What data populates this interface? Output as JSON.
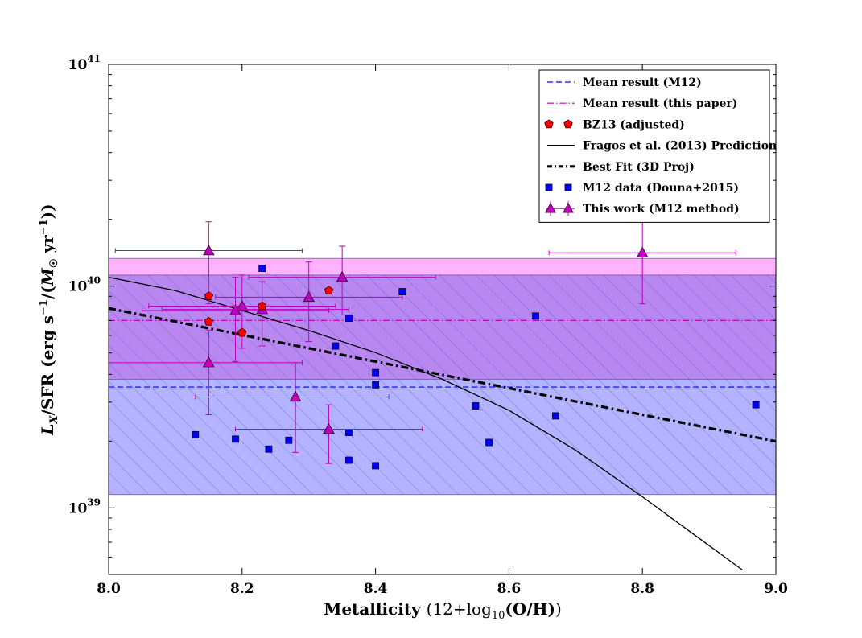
{
  "chart_data": {
    "type": "scatter",
    "title": "",
    "xlabel": "Metallicity (12+log10(O/H))",
    "ylabel": "L_X/SFR (erg s^-1/(M_sun yr^-1))",
    "xlim": [
      8.0,
      9.0
    ],
    "ylim_log10": [
      38.7,
      41.0
    ],
    "x_ticks": [
      {
        "v": 8.0,
        "label": "8.0"
      },
      {
        "v": 8.2,
        "label": "8.2"
      },
      {
        "v": 8.4,
        "label": "8.4"
      },
      {
        "v": 8.6,
        "label": "8.6"
      },
      {
        "v": 8.8,
        "label": "8.8"
      },
      {
        "v": 9.0,
        "label": "9.0"
      }
    ],
    "y_ticks": [
      {
        "e": 39,
        "base": "10",
        "exp": "39"
      },
      {
        "e": 40,
        "base": "10",
        "exp": "40"
      },
      {
        "e": 41,
        "base": "10",
        "exp": "41"
      }
    ],
    "colors": {
      "m12": "#0000ff",
      "this_paper": "#bf00bf",
      "bz13": "#ff0000",
      "fragos": "#000000",
      "band_pink": "#ffb3ff",
      "band_purple": "#b266ff",
      "band_blue": "#b3b3ff",
      "hatch": "#5050c0"
    },
    "bands": [
      {
        "name": "this-paper-upper-band",
        "lo": 40.05,
        "hi": 40.125,
        "color": "#ffb3ff"
      },
      {
        "name": "overlap-band",
        "lo": 39.58,
        "hi": 40.05,
        "color": "#b888f0"
      },
      {
        "name": "m12-lower-band",
        "lo": 39.06,
        "hi": 39.58,
        "color": "#b3b3ff"
      }
    ],
    "mean_m12": 39.545,
    "mean_this_paper": 39.845,
    "fragos_curve": [
      [
        8.0,
        40.04
      ],
      [
        8.1,
        39.98
      ],
      [
        8.2,
        39.89
      ],
      [
        8.3,
        39.8
      ],
      [
        8.4,
        39.7
      ],
      [
        8.5,
        39.58
      ],
      [
        8.6,
        39.44
      ],
      [
        8.7,
        39.26
      ],
      [
        8.8,
        39.05
      ],
      [
        8.9,
        38.83
      ],
      [
        8.95,
        38.72
      ]
    ],
    "best_fit": {
      "x0": 8.0,
      "y0": 39.9,
      "x1": 9.0,
      "y1": 39.3
    },
    "m12_data": [
      [
        8.13,
        39.33
      ],
      [
        8.19,
        39.31
      ],
      [
        8.23,
        40.08
      ],
      [
        8.24,
        39.265
      ],
      [
        8.27,
        39.305
      ],
      [
        8.34,
        39.73
      ],
      [
        8.36,
        39.855
      ],
      [
        8.36,
        39.34
      ],
      [
        8.36,
        39.215
      ],
      [
        8.4,
        39.61
      ],
      [
        8.4,
        39.555
      ],
      [
        8.4,
        39.19
      ],
      [
        8.44,
        39.975
      ],
      [
        8.55,
        39.46
      ],
      [
        8.57,
        39.295
      ],
      [
        8.64,
        39.865
      ],
      [
        8.67,
        39.415
      ],
      [
        8.97,
        39.465
      ]
    ],
    "bz13_data": [
      [
        8.15,
        39.955
      ],
      [
        8.15,
        39.84
      ],
      [
        8.2,
        39.79
      ],
      [
        8.23,
        39.91
      ],
      [
        8.33,
        39.98
      ]
    ],
    "this_work": [
      {
        "x": 8.15,
        "y": 40.16,
        "xlo": 8.01,
        "xhi": 8.29,
        "ylo": 39.92,
        "yhi": 40.29
      },
      {
        "x": 8.15,
        "y": 39.655,
        "xlo": 8.0,
        "xhi": 8.29,
        "ylo": 39.42,
        "yhi": 39.8
      },
      {
        "x": 8.19,
        "y": 39.89,
        "xlo": 8.05,
        "xhi": 8.33,
        "ylo": 39.66,
        "yhi": 40.04
      },
      {
        "x": 8.2,
        "y": 39.91,
        "xlo": 8.06,
        "xhi": 8.34,
        "ylo": 39.72,
        "yhi": 40.05
      },
      {
        "x": 8.23,
        "y": 39.895,
        "xlo": 8.08,
        "xhi": 8.36,
        "ylo": 39.73,
        "yhi": 40.02
      },
      {
        "x": 8.28,
        "y": 39.5,
        "xlo": 8.13,
        "xhi": 8.42,
        "ylo": 39.25,
        "yhi": 39.655
      },
      {
        "x": 8.3,
        "y": 39.95,
        "xlo": 8.16,
        "xhi": 8.44,
        "ylo": 39.75,
        "yhi": 40.11
      },
      {
        "x": 8.33,
        "y": 39.355,
        "xlo": 8.19,
        "xhi": 8.47,
        "ylo": 39.2,
        "yhi": 39.465
      },
      {
        "x": 8.35,
        "y": 40.04,
        "xlo": 8.21,
        "xhi": 8.49,
        "ylo": 39.87,
        "yhi": 40.18
      },
      {
        "x": 8.8,
        "y": 40.15,
        "xlo": 8.66,
        "xhi": 8.94,
        "ylo": 39.92,
        "yhi": 40.38
      }
    ],
    "legend": [
      {
        "key": "mean_m12",
        "label": "Mean result (M12)"
      },
      {
        "key": "mean_this_paper",
        "label": "Mean result (this paper)"
      },
      {
        "key": "bz13",
        "label": "BZ13 (adjusted)"
      },
      {
        "key": "fragos",
        "label": "Fragos et al. (2013) Prediction"
      },
      {
        "key": "best_fit",
        "label": "Best Fit (3D Proj)"
      },
      {
        "key": "m12",
        "label": "M12 data (Douna+2015)"
      },
      {
        "key": "this_work",
        "label": "This work (M12 method)"
      }
    ]
  }
}
